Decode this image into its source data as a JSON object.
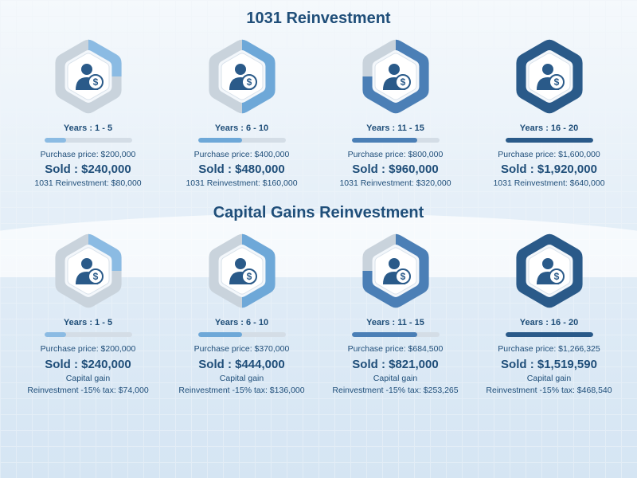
{
  "colors": {
    "light_grey": "#c9d3dc",
    "mid_blue": "#6ea8d8",
    "dark_blue": "#2a5a89",
    "text": "#1f4e79"
  },
  "hex": {
    "outer": 48,
    "ring_width": 14,
    "gap": 4
  },
  "section1": {
    "title": "1031 Reinvestment",
    "title_fontsize": 20,
    "labels": {
      "purchase": "Purchase  price: ",
      "sold": "Sold : ",
      "extra": "1031 Reinvestment: "
    },
    "cards": [
      {
        "years": "Years : 1 - 5",
        "arc": 0.25,
        "bar": 0.25,
        "purchase": "$200,000",
        "sold": "$240,000",
        "extra": "$80,000"
      },
      {
        "years": "Years : 6 - 10",
        "arc": 0.5,
        "bar": 0.5,
        "purchase": "$400,000",
        "sold": "$480,000",
        "extra": "$160,000"
      },
      {
        "years": "Years : 11 - 15",
        "arc": 0.75,
        "bar": 0.75,
        "purchase": "$800,000",
        "sold": "$960,000",
        "extra": "$320,000"
      },
      {
        "years": "Years : 16 - 20",
        "arc": 1.0,
        "bar": 1.0,
        "purchase": "$1,600,000",
        "sold": "$1,920,000",
        "extra": "$640,000"
      }
    ]
  },
  "section2": {
    "title": "Capital Gains Reinvestment",
    "title_fontsize": 20,
    "labels": {
      "purchase": "Purchase  price: ",
      "sold": "Sold : ",
      "mid": "Capital gain",
      "extra": "Reinvestment -15% tax: "
    },
    "cards": [
      {
        "years": "Years : 1 - 5",
        "arc": 0.25,
        "bar": 0.25,
        "purchase": "$200,000",
        "sold": "$240,000",
        "extra": "$74,000"
      },
      {
        "years": "Years : 6 - 10",
        "arc": 0.5,
        "bar": 0.5,
        "purchase": "$370,000",
        "sold": "$444,000",
        "extra": "$136,000"
      },
      {
        "years": "Years : 11 - 15",
        "arc": 0.75,
        "bar": 0.75,
        "purchase": "$684,500",
        "sold": "$821,000",
        "extra": "$253,265"
      },
      {
        "years": "Years : 16 - 20",
        "arc": 1.0,
        "bar": 1.0,
        "purchase": "$1,266,325",
        "sold": "$1,519,590",
        "extra": "$468,540"
      }
    ]
  }
}
